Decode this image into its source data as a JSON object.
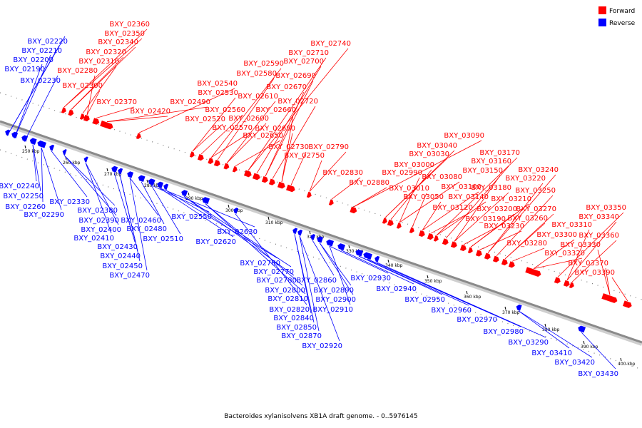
{
  "caption": "Bacteroides xylanisolvens XB1A draft genome. - 0..5976145",
  "legend": [
    {
      "label": "Forward",
      "color": "#ff0000"
    },
    {
      "label": "Reverse",
      "color": "#0000ff"
    }
  ],
  "tick_labels": [
    "250 kbp",
    "260 kbp",
    "270 kbp",
    "280 kbp",
    "290 kbp",
    "300 kbp",
    "310 kbp",
    "320 kbp",
    "330 kbp",
    "340 kbp",
    "350 kbp",
    "360 kbp",
    "370 kbp",
    "380 kbp",
    "390 kbp",
    "400 kbp"
  ],
  "forward_genes": [
    "BXY_02360",
    "BXY_02350",
    "BXY_02340",
    "BXY_02320",
    "BXY_02310",
    "BXY_02280",
    "BXY_02300",
    "BXY_02370",
    "BXY_02420",
    "BXY_02490",
    "BXY_02540",
    "BXY_02530",
    "BXY_02520",
    "BXY_02560",
    "BXY_02570",
    "BXY_02590",
    "BXY_02580",
    "BXY_02610",
    "BXY_02600",
    "BXY_02650",
    "BXY_02740",
    "BXY_02710",
    "BXY_02700",
    "BXY_02690",
    "BXY_02670",
    "BXY_02720",
    "BXY_02660",
    "BXY_02680",
    "BXY_02730",
    "BXY_02790",
    "BXY_02750",
    "BXY_02830",
    "BXY_02880",
    "BXY_03090",
    "BXY_03040",
    "BXY_03030",
    "BXY_03000",
    "BXY_02990",
    "BXY_03080",
    "BXY_03010",
    "BXY_03050",
    "BXY_03100",
    "BXY_03120",
    "BXY_03140",
    "BXY_03170",
    "BXY_03160",
    "BXY_03150",
    "BXY_03180",
    "BXY_03190",
    "BXY_03200",
    "BXY_03210",
    "BXY_03230",
    "BXY_03240",
    "BXY_03220",
    "BXY_03250",
    "BXY_03270",
    "BXY_03260",
    "BXY_03280",
    "BXY_03300",
    "BXY_03320",
    "BXY_03350",
    "BXY_03340",
    "BXY_03310",
    "BXY_03360",
    "BXY_03330",
    "BXY_03370",
    "BXY_03390"
  ],
  "reverse_genes": [
    "BXY_02220",
    "BXY_02210",
    "BXY_02200",
    "BXY_02190",
    "BXY_02230",
    "BXY_02240",
    "BXY_02250",
    "BXY_02260",
    "BXY_02290",
    "BXY_02330",
    "BXY_02380",
    "BXY_02390",
    "BXY_02400",
    "BXY_02410",
    "BXY_02430",
    "BXY_02440",
    "BXY_02450",
    "BXY_02470",
    "BXY_02460",
    "BXY_02480",
    "BXY_02510",
    "BXY_02550",
    "BXY_02630",
    "BXY_02620",
    "BXY_02760",
    "BXY_02770",
    "BXY_02780",
    "BXY_02800",
    "BXY_02810",
    "BXY_02820",
    "BXY_02840",
    "BXY_02850",
    "BXY_02870",
    "BXY_02920",
    "BXY_02860",
    "BXY_02890",
    "BXY_02900",
    "BXY_02910",
    "BXY_02930",
    "BXY_02940",
    "BXY_02950",
    "BXY_02960",
    "BXY_02970",
    "BXY_02980",
    "BXY_03290",
    "BXY_03410",
    "BXY_03420",
    "BXY_03430"
  ]
}
